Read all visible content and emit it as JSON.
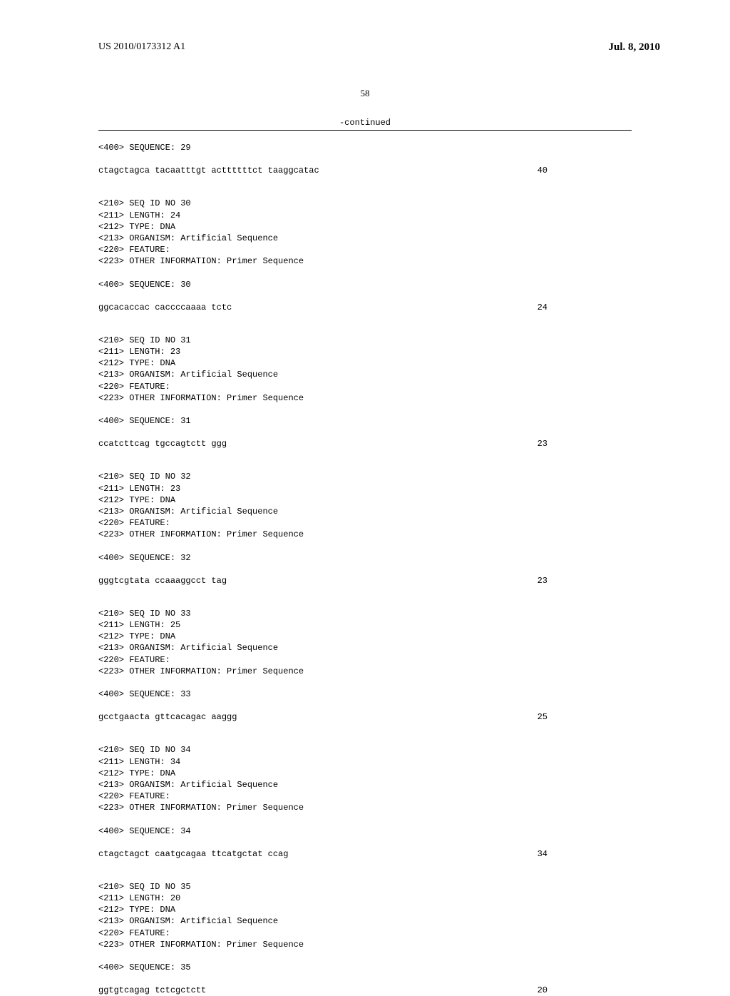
{
  "header": {
    "publication_number": "US 2010/0173312 A1",
    "publication_date": "Jul. 8, 2010"
  },
  "page_number": "58",
  "continued_label": "-continued",
  "sequences": [
    {
      "header_label": "<400> SEQUENCE: 29",
      "seq_text": "ctagctagca tacaatttgt acttttttct taaggcatac",
      "seq_count": "40"
    },
    {
      "meta": [
        "<210> SEQ ID NO 30",
        "<211> LENGTH: 24",
        "<212> TYPE: DNA",
        "<213> ORGANISM: Artificial Sequence",
        "<220> FEATURE:",
        "<223> OTHER INFORMATION: Primer Sequence"
      ],
      "header_label": "<400> SEQUENCE: 30",
      "seq_text": "ggcacaccac caccccaaaa tctc",
      "seq_count": "24"
    },
    {
      "meta": [
        "<210> SEQ ID NO 31",
        "<211> LENGTH: 23",
        "<212> TYPE: DNA",
        "<213> ORGANISM: Artificial Sequence",
        "<220> FEATURE:",
        "<223> OTHER INFORMATION: Primer Sequence"
      ],
      "header_label": "<400> SEQUENCE: 31",
      "seq_text": "ccatcttcag tgccagtctt ggg",
      "seq_count": "23"
    },
    {
      "meta": [
        "<210> SEQ ID NO 32",
        "<211> LENGTH: 23",
        "<212> TYPE: DNA",
        "<213> ORGANISM: Artificial Sequence",
        "<220> FEATURE:",
        "<223> OTHER INFORMATION: Primer Sequence"
      ],
      "header_label": "<400> SEQUENCE: 32",
      "seq_text": "gggtcgtata ccaaaggcct tag",
      "seq_count": "23"
    },
    {
      "meta": [
        "<210> SEQ ID NO 33",
        "<211> LENGTH: 25",
        "<212> TYPE: DNA",
        "<213> ORGANISM: Artificial Sequence",
        "<220> FEATURE:",
        "<223> OTHER INFORMATION: Primer Sequence"
      ],
      "header_label": "<400> SEQUENCE: 33",
      "seq_text": "gcctgaacta gttcacagac aaggg",
      "seq_count": "25"
    },
    {
      "meta": [
        "<210> SEQ ID NO 34",
        "<211> LENGTH: 34",
        "<212> TYPE: DNA",
        "<213> ORGANISM: Artificial Sequence",
        "<220> FEATURE:",
        "<223> OTHER INFORMATION: Primer Sequence"
      ],
      "header_label": "<400> SEQUENCE: 34",
      "seq_text": "ctagctagct caatgcagaa ttcatgctat ccag",
      "seq_count": "34"
    },
    {
      "meta": [
        "<210> SEQ ID NO 35",
        "<211> LENGTH: 20",
        "<212> TYPE: DNA",
        "<213> ORGANISM: Artificial Sequence",
        "<220> FEATURE:",
        "<223> OTHER INFORMATION: Primer Sequence"
      ],
      "header_label": "<400> SEQUENCE: 35",
      "seq_text": "ggtgtcagag tctcgctctt",
      "seq_count": "20"
    }
  ]
}
